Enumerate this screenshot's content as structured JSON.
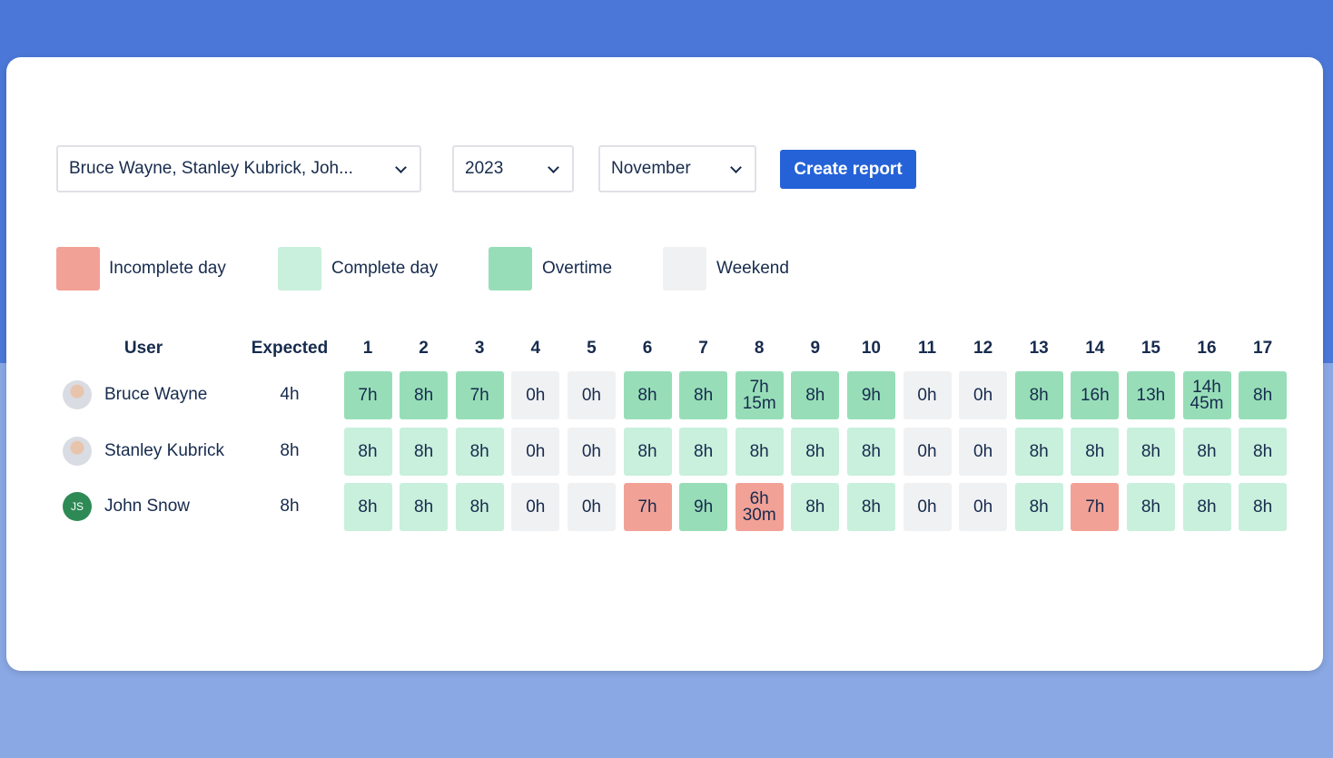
{
  "filters": {
    "users": "Bruce Wayne, Stanley Kubrick, Joh...",
    "year": "2023",
    "month": "November",
    "button": "Create report"
  },
  "legend": [
    {
      "label": "Incomplete day",
      "color": "#f2a196"
    },
    {
      "label": "Complete day",
      "color": "#c8f0dc"
    },
    {
      "label": "Overtime",
      "color": "#97deb8"
    },
    {
      "label": "Weekend",
      "color": "#f0f1f3"
    }
  ],
  "table": {
    "headers": [
      "User",
      "Expected",
      "1",
      "2",
      "3",
      "4",
      "5",
      "6",
      "7",
      "8",
      "9",
      "10",
      "11",
      "12",
      "13",
      "14",
      "15",
      "16",
      "17"
    ],
    "rows": [
      {
        "user": "Bruce Wayne",
        "expected": "4h",
        "cells": [
          {
            "text": "7h",
            "color": "#97deb8"
          },
          {
            "text": "8h",
            "color": "#97deb8"
          },
          {
            "text": "7h",
            "color": "#97deb8"
          },
          {
            "text": "0h",
            "color": "#f0f1f3"
          },
          {
            "text": "0h",
            "color": "#f0f1f3"
          },
          {
            "text": "8h",
            "color": "#97deb8"
          },
          {
            "text": "8h",
            "color": "#97deb8"
          },
          {
            "text": "7h 15m",
            "color": "#97deb8"
          },
          {
            "text": "8h",
            "color": "#97deb8"
          },
          {
            "text": "9h",
            "color": "#97deb8"
          },
          {
            "text": "0h",
            "color": "#f0f1f3"
          },
          {
            "text": "0h",
            "color": "#f0f1f3"
          },
          {
            "text": "8h",
            "color": "#97deb8"
          },
          {
            "text": "16h",
            "color": "#97deb8"
          },
          {
            "text": "13h",
            "color": "#97deb8"
          },
          {
            "text": "14h 45m",
            "color": "#97deb8"
          },
          {
            "text": "8h",
            "color": "#97deb8"
          }
        ]
      },
      {
        "user": "Stanley Kubrick",
        "expected": "8h",
        "cells": [
          {
            "text": "8h",
            "color": "#c8f0dc"
          },
          {
            "text": "8h",
            "color": "#c8f0dc"
          },
          {
            "text": "8h",
            "color": "#c8f0dc"
          },
          {
            "text": "0h",
            "color": "#f0f1f3"
          },
          {
            "text": "0h",
            "color": "#f0f1f3"
          },
          {
            "text": "8h",
            "color": "#c8f0dc"
          },
          {
            "text": "8h",
            "color": "#c8f0dc"
          },
          {
            "text": "8h",
            "color": "#c8f0dc"
          },
          {
            "text": "8h",
            "color": "#c8f0dc"
          },
          {
            "text": "8h",
            "color": "#c8f0dc"
          },
          {
            "text": "0h",
            "color": "#f0f1f3"
          },
          {
            "text": "0h",
            "color": "#f0f1f3"
          },
          {
            "text": "8h",
            "color": "#c8f0dc"
          },
          {
            "text": "8h",
            "color": "#c8f0dc"
          },
          {
            "text": "8h",
            "color": "#c8f0dc"
          },
          {
            "text": "8h",
            "color": "#c8f0dc"
          },
          {
            "text": "8h",
            "color": "#c8f0dc"
          }
        ]
      },
      {
        "user": "John Snow",
        "initials": "JS",
        "expected": "8h",
        "cells": [
          {
            "text": "8h",
            "color": "#c8f0dc"
          },
          {
            "text": "8h",
            "color": "#c8f0dc"
          },
          {
            "text": "8h",
            "color": "#c8f0dc"
          },
          {
            "text": "0h",
            "color": "#f0f1f3"
          },
          {
            "text": "0h",
            "color": "#f0f1f3"
          },
          {
            "text": "7h",
            "color": "#f2a196"
          },
          {
            "text": "9h",
            "color": "#97deb8"
          },
          {
            "text": "6h 30m",
            "color": "#f2a196"
          },
          {
            "text": "8h",
            "color": "#c8f0dc"
          },
          {
            "text": "8h",
            "color": "#c8f0dc"
          },
          {
            "text": "0h",
            "color": "#f0f1f3"
          },
          {
            "text": "0h",
            "color": "#f0f1f3"
          },
          {
            "text": "8h",
            "color": "#c8f0dc"
          },
          {
            "text": "7h",
            "color": "#f2a196"
          },
          {
            "text": "8h",
            "color": "#c8f0dc"
          },
          {
            "text": "8h",
            "color": "#c8f0dc"
          },
          {
            "text": "8h",
            "color": "#c8f0dc"
          }
        ]
      }
    ]
  }
}
